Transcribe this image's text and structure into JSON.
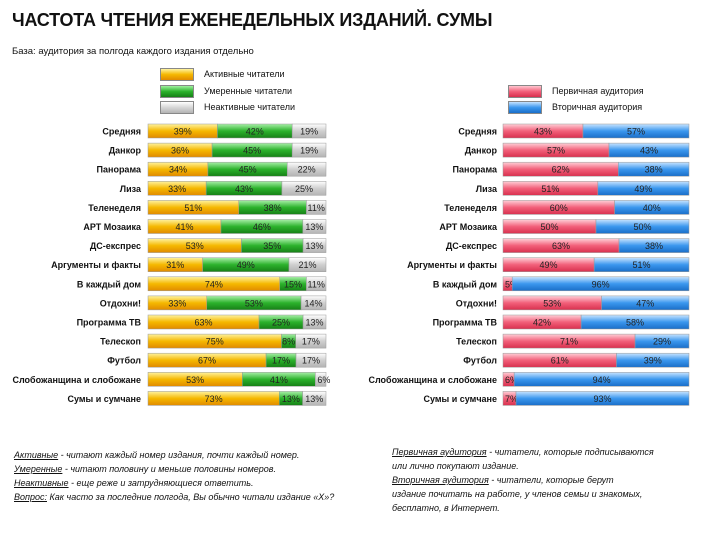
{
  "title": "ЧАСТОТА ЧТЕНИЯ ЕЖЕНЕДЕЛЬНЫХ ИЗДАНИЙ. СУМЫ",
  "base_text": "База: аудитория за полгода каждого издания отдельно",
  "colors": {
    "active": "#f5b800",
    "moderate": "#2cb22c",
    "inactive": "#cfcfcf",
    "primary": "#f2607a",
    "secondary": "#3b97ee"
  },
  "legend": {
    "active": "Активные читатели",
    "moderate": "Умеренные читатели",
    "inactive": "Неактивные читатели",
    "primary": "Первичная аудитория",
    "secondary": "Вторичная аудитория"
  },
  "chart_data": [
    {
      "type": "bar",
      "stacked": true,
      "orientation": "horizontal",
      "categories": [
        "Средняя",
        "Данкор",
        "Панорама",
        "Лиза",
        "Теленеделя",
        "АРТ Мозаика",
        "ДС-експрес",
        "Аргументы и факты",
        "В каждый дом",
        "Отдохни!",
        "Программа ТВ",
        "Телескоп",
        "Футбол",
        "Слобожанщина и слобожане",
        "Сумы и сумчане"
      ],
      "series": [
        {
          "name": "Активные читатели",
          "values": [
            39,
            36,
            34,
            33,
            51,
            41,
            53,
            31,
            74,
            33,
            63,
            75,
            67,
            53,
            73
          ]
        },
        {
          "name": "Умеренные читатели",
          "values": [
            42,
            45,
            45,
            43,
            38,
            46,
            35,
            49,
            15,
            53,
            25,
            8,
            17,
            41,
            13
          ]
        },
        {
          "name": "Неактивные читатели",
          "values": [
            19,
            19,
            22,
            25,
            11,
            13,
            13,
            21,
            11,
            14,
            13,
            17,
            17,
            6,
            13
          ]
        }
      ]
    },
    {
      "type": "bar",
      "stacked": true,
      "orientation": "horizontal",
      "categories": [
        "Средняя",
        "Данкор",
        "Панорама",
        "Лиза",
        "Теленеделя",
        "АРТ Мозаика",
        "ДС-експрес",
        "Аргументы и факты",
        "В каждый дом",
        "Отдохни!",
        "Программа ТВ",
        "Телескоп",
        "Футбол",
        "Слобожанщина и слобожане",
        "Сумы и сумчане"
      ],
      "series": [
        {
          "name": "Первичная аудитория",
          "values": [
            43,
            57,
            62,
            51,
            60,
            50,
            63,
            49,
            5,
            53,
            42,
            71,
            61,
            6,
            7
          ]
        },
        {
          "name": "Вторичная аудитория",
          "values": [
            57,
            43,
            38,
            49,
            40,
            50,
            38,
            51,
            96,
            47,
            58,
            29,
            39,
            94,
            93
          ]
        }
      ]
    }
  ],
  "notes_left": [
    {
      "term": "Активные",
      "text": " - читают каждый номер издания, почти каждый номер."
    },
    {
      "term": "Умеренные",
      "text": " - читают половину и меньше половины номеров."
    },
    {
      "term": "Неактивные",
      "text": " - еще реже и затрудняющиеся ответить."
    },
    {
      "term": "Вопрос:",
      "text": " Как часто за последние полгода, Вы обычно читали издание «Х»?"
    }
  ],
  "notes_right": [
    {
      "term": "Первичная аудитория",
      "text": " - читатели, которые подписываются"
    },
    {
      "term": "",
      "text": "или лично покупают издание."
    },
    {
      "term": "Вторичная аудитория",
      "text": " - читатели, которые берут"
    },
    {
      "term": "",
      "text": "издание почитать на работе, у членов семьи и знакомых,"
    },
    {
      "term": "",
      "text": "бесплатно, в Интернет."
    }
  ]
}
